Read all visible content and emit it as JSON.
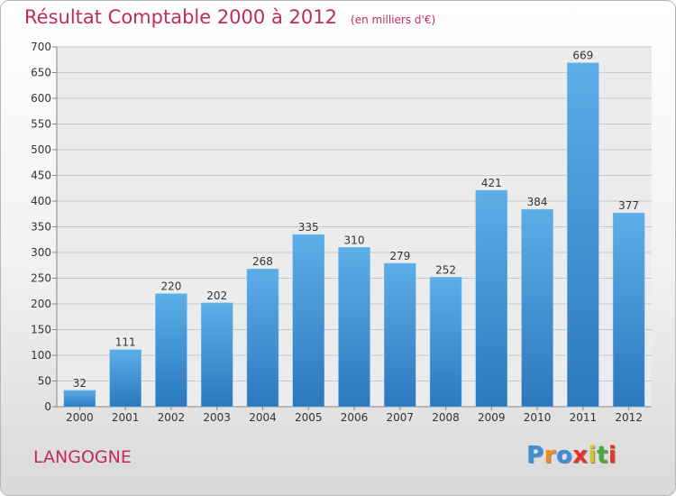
{
  "chart_data": {
    "type": "bar",
    "title": "Résultat Comptable 2000 à 2012",
    "subtitle": "(en milliers d'€)",
    "categories": [
      "2000",
      "2001",
      "2002",
      "2003",
      "2004",
      "2005",
      "2006",
      "2007",
      "2008",
      "2009",
      "2010",
      "2011",
      "2012"
    ],
    "values": [
      32,
      111,
      220,
      202,
      268,
      335,
      310,
      279,
      252,
      421,
      384,
      669,
      377
    ],
    "ylim": [
      0,
      700
    ],
    "yticks": [
      0,
      50,
      100,
      150,
      200,
      250,
      300,
      350,
      400,
      450,
      500,
      550,
      600,
      650,
      700
    ],
    "grid": true,
    "bar_color": "#4a9ee0",
    "title_color": "#c12a5e"
  },
  "footer": {
    "place": "LANGOGNE",
    "logo": "Proxiti",
    "logo_colors": [
      "#3a8fd8",
      "#f08a1c",
      "#3a8fd8",
      "#e8312a",
      "#d6c51c",
      "#4aa93a",
      "#e8312a"
    ]
  }
}
